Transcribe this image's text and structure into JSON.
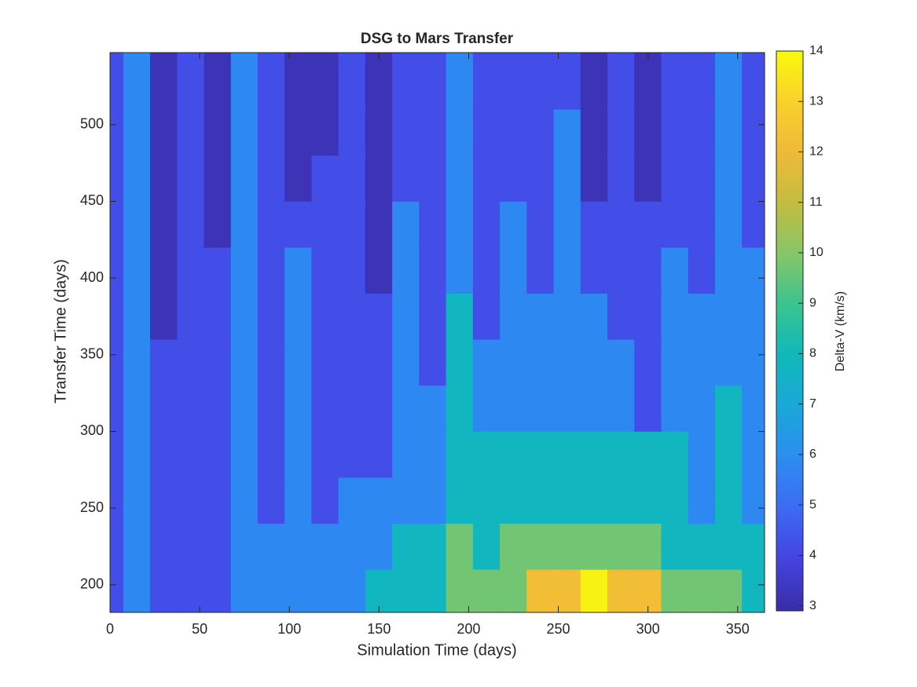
{
  "chart_data": {
    "type": "contour",
    "title": "DSG to Mars Transfer",
    "x_label": "Simulation Time (days)",
    "y_label": "Transfer Time (days)",
    "colorbar_label": "Delta-V (km/s)",
    "x": [
      0,
      15,
      30,
      45,
      60,
      75,
      90,
      105,
      120,
      135,
      150,
      165,
      180,
      195,
      210,
      225,
      240,
      255,
      270,
      285,
      300,
      315,
      330,
      345,
      360
    ],
    "y": [
      195,
      225,
      255,
      285,
      315,
      345,
      375,
      405,
      435,
      465,
      495,
      525
    ],
    "z": [
      [
        4.2,
        5.8,
        4.2,
        4.2,
        4.2,
        5.8,
        5.8,
        5.8,
        5.8,
        5.8,
        7.8,
        7.8,
        7.8,
        9.7,
        9.7,
        9.7,
        12.2,
        12.2,
        13.8,
        12.2,
        12.2,
        9.7,
        9.7,
        9.7,
        7.8
      ],
      [
        4.2,
        5.8,
        4.2,
        4.2,
        4.2,
        5.8,
        5.8,
        5.8,
        5.8,
        5.8,
        5.8,
        7.8,
        7.8,
        9.7,
        7.8,
        9.7,
        9.7,
        9.7,
        9.7,
        9.7,
        9.7,
        7.8,
        7.8,
        7.8,
        7.8
      ],
      [
        4.2,
        5.8,
        4.2,
        4.2,
        4.2,
        5.8,
        4.2,
        5.8,
        4.2,
        5.8,
        5.8,
        5.8,
        5.8,
        7.8,
        7.8,
        7.8,
        7.8,
        7.8,
        7.8,
        7.8,
        7.8,
        7.8,
        5.8,
        7.8,
        5.8
      ],
      [
        4.2,
        5.8,
        4.2,
        4.2,
        4.2,
        5.8,
        4.2,
        5.8,
        4.2,
        4.2,
        4.2,
        5.8,
        5.8,
        7.8,
        7.8,
        7.8,
        7.8,
        7.8,
        7.8,
        7.8,
        7.8,
        7.8,
        5.8,
        7.8,
        5.8
      ],
      [
        4.2,
        5.8,
        4.2,
        4.2,
        4.2,
        5.8,
        4.2,
        5.8,
        4.2,
        4.2,
        4.2,
        5.8,
        5.8,
        7.8,
        5.8,
        5.8,
        5.8,
        5.8,
        5.8,
        5.8,
        4.2,
        5.8,
        5.8,
        7.8,
        5.8
      ],
      [
        4.2,
        5.8,
        4.2,
        4.2,
        4.2,
        5.8,
        4.2,
        5.8,
        4.2,
        4.2,
        4.2,
        5.8,
        4.2,
        7.8,
        5.8,
        5.8,
        5.8,
        5.8,
        5.8,
        5.8,
        4.2,
        5.8,
        5.8,
        5.8,
        5.8
      ],
      [
        4.2,
        5.8,
        3.2,
        4.2,
        4.2,
        5.8,
        4.2,
        5.8,
        4.2,
        4.2,
        4.2,
        5.8,
        4.2,
        7.8,
        4.2,
        5.8,
        5.8,
        5.8,
        5.8,
        4.2,
        4.2,
        5.8,
        5.8,
        5.8,
        5.8
      ],
      [
        4.2,
        5.8,
        3.2,
        4.2,
        4.2,
        5.8,
        4.2,
        5.8,
        4.2,
        4.2,
        3.2,
        5.8,
        4.2,
        5.8,
        4.2,
        5.8,
        4.2,
        5.8,
        4.2,
        4.2,
        4.2,
        5.8,
        4.2,
        5.8,
        5.8
      ],
      [
        4.2,
        5.8,
        3.2,
        4.2,
        3.2,
        5.8,
        4.2,
        4.2,
        4.2,
        4.2,
        3.2,
        5.8,
        4.2,
        5.8,
        4.2,
        5.8,
        4.2,
        5.8,
        4.2,
        4.2,
        4.2,
        4.2,
        4.2,
        5.8,
        4.2
      ],
      [
        4.2,
        5.8,
        3.2,
        4.2,
        3.2,
        5.8,
        4.2,
        3.2,
        4.2,
        4.2,
        3.2,
        4.2,
        4.2,
        5.8,
        4.2,
        4.2,
        4.2,
        5.8,
        3.2,
        4.2,
        3.2,
        4.2,
        4.2,
        5.8,
        4.2
      ],
      [
        4.2,
        5.8,
        3.2,
        4.2,
        3.2,
        5.8,
        4.2,
        3.2,
        3.2,
        4.2,
        3.2,
        4.2,
        4.2,
        5.8,
        4.2,
        4.2,
        4.2,
        5.8,
        3.2,
        4.2,
        3.2,
        4.2,
        4.2,
        5.8,
        4.2
      ],
      [
        4.2,
        5.8,
        3.2,
        4.2,
        3.2,
        5.8,
        4.2,
        3.2,
        3.2,
        4.2,
        3.2,
        4.2,
        4.2,
        5.8,
        4.2,
        4.2,
        4.2,
        4.2,
        3.2,
        4.2,
        3.2,
        4.2,
        4.2,
        5.8,
        4.2
      ]
    ],
    "xlim": [
      0,
      365
    ],
    "xticks": [
      0,
      50,
      100,
      150,
      200,
      250,
      300,
      350
    ],
    "ylim": [
      182,
      547
    ],
    "yticks": [
      200,
      250,
      300,
      350,
      400,
      450,
      500
    ],
    "clim": [
      2.9,
      14
    ],
    "cticks": [
      3,
      4,
      5,
      6,
      7,
      8,
      9,
      10,
      11,
      12,
      13,
      14
    ],
    "colormap": [
      {
        "value": 3,
        "color": "#3a2fab"
      },
      {
        "value": 4,
        "color": "#4545e4"
      },
      {
        "value": 5,
        "color": "#3c6df3"
      },
      {
        "value": 6,
        "color": "#2b8ff0"
      },
      {
        "value": 7,
        "color": "#1aa8d8"
      },
      {
        "value": 8,
        "color": "#0fb9b8"
      },
      {
        "value": 9,
        "color": "#3cc48e"
      },
      {
        "value": 10,
        "color": "#88c667"
      },
      {
        "value": 11,
        "color": "#c3bd3f"
      },
      {
        "value": 12,
        "color": "#efba38"
      },
      {
        "value": 13,
        "color": "#f9d02c"
      },
      {
        "value": 14,
        "color": "#f8fa0d"
      }
    ]
  }
}
